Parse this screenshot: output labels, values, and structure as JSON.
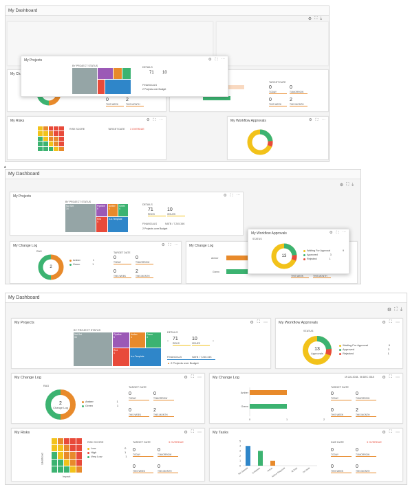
{
  "dashboard": {
    "title": "My Dashboard",
    "tools": [
      "⚙",
      "⛶",
      "⤓"
    ]
  },
  "widget_tools": [
    "⚙",
    "⛶",
    "⋯"
  ],
  "colors": {
    "orange": "#e88a2b",
    "green": "#3cb371",
    "red": "#e84a3a",
    "yellow": "#f2c21a",
    "purple": "#9b59b6",
    "gray": "#95a5a6",
    "blue": "#2f86c9"
  },
  "projects": {
    "title": "My Projects",
    "status_label": "BY PROJECT STATUS",
    "tiles": [
      {
        "name": "Not Set",
        "count": "34"
      },
      {
        "name": "Pipeline",
        "count": "6"
      },
      {
        "name": "Amber",
        "count": "4"
      },
      {
        "name": "Green",
        "count": "4"
      },
      {
        "name": "Red",
        "count": "4"
      },
      {
        "name": "Is a Template",
        "count": ""
      }
    ],
    "details_label": "DETAILS",
    "risks": "71",
    "risks_label": "RISKS",
    "issues": "10",
    "issues_label": "ISSUES",
    "financials_label": "FINANCIALS",
    "financials_value": "NATB / 7,245.34K",
    "over_budget": "2 Projects over Budget"
  },
  "workflow": {
    "title": "My Workflow Approvals",
    "status_label": "STATUS",
    "center_value": "13",
    "center_label": "Approvals",
    "legend": [
      {
        "name": "Waiting For Approval",
        "value": "9"
      },
      {
        "name": "Approved",
        "value": "3"
      },
      {
        "name": "Rejected",
        "value": "1"
      }
    ]
  },
  "changelog_donut": {
    "title": "My Change Log",
    "rag_label": "RAG",
    "center_value": "2",
    "center_label": "Change Log",
    "legend": [
      {
        "name": "Amber",
        "value": "1"
      },
      {
        "name": "Green",
        "value": "1"
      }
    ],
    "target_label": "TARGET DATE",
    "cells": [
      {
        "n": "0",
        "c": "TODAY"
      },
      {
        "n": "0",
        "c": "TOMORROW"
      },
      {
        "n": "0",
        "c": "THIS WEEK"
      },
      {
        "n": "2",
        "c": "THIS MONTH"
      }
    ]
  },
  "changelog_bar": {
    "title": "My Change Log",
    "date_range": "19 JUL 2018 - 06 DEC 2018",
    "bars": [
      {
        "name": "Amber",
        "value": 1
      },
      {
        "name": "Green",
        "value": 1
      }
    ],
    "xticks": [
      "0",
      "1",
      "2"
    ],
    "target_label": "TARGET DATE",
    "cells": [
      {
        "n": "0",
        "c": "TODAY"
      },
      {
        "n": "0",
        "c": "TOMORROW"
      },
      {
        "n": "0",
        "c": "THIS WEEK"
      },
      {
        "n": "2",
        "c": "THIS MONTH"
      }
    ]
  },
  "risks": {
    "title": "My Risks",
    "yaxis": "Likelihood",
    "xaxis": "Impact",
    "score_label": "RISK SCORE",
    "legend": [
      {
        "name": "Low",
        "value": "0"
      },
      {
        "name": "High",
        "value": "1"
      },
      {
        "name": "Very Low",
        "value": "1"
      }
    ],
    "target_label": "TARGET DATE",
    "overdue": "3 OVERDUE",
    "cells": [
      {
        "n": "0",
        "c": "TODAY"
      },
      {
        "n": "0",
        "c": "TOMORROW"
      },
      {
        "n": "0",
        "c": "THIS WEEK"
      },
      {
        "n": "0",
        "c": "THIS MONTH"
      }
    ]
  },
  "tasks": {
    "title": "My Tasks",
    "due_label": "DUE DATE",
    "overdue": "3 OVERDUE",
    "yticks": [
      "0",
      "1",
      "2",
      "3",
      "4",
      "5"
    ],
    "bars": [
      {
        "name": "Not Started",
        "value": 4
      },
      {
        "name": "Complete",
        "value": 3
      },
      {
        "name": "Active",
        "value": 1
      },
      {
        "name": "Action Required",
        "value": 0
      },
      {
        "name": "At Risk",
        "value": 0
      },
      {
        "name": "On Hold",
        "value": 0
      }
    ],
    "cells": [
      {
        "n": "0",
        "c": "TODAY"
      },
      {
        "n": "0",
        "c": "TOMORROW"
      },
      {
        "n": "0",
        "c": "THIS WEEK"
      },
      {
        "n": "0",
        "c": "THIS MONTH"
      }
    ]
  }
}
